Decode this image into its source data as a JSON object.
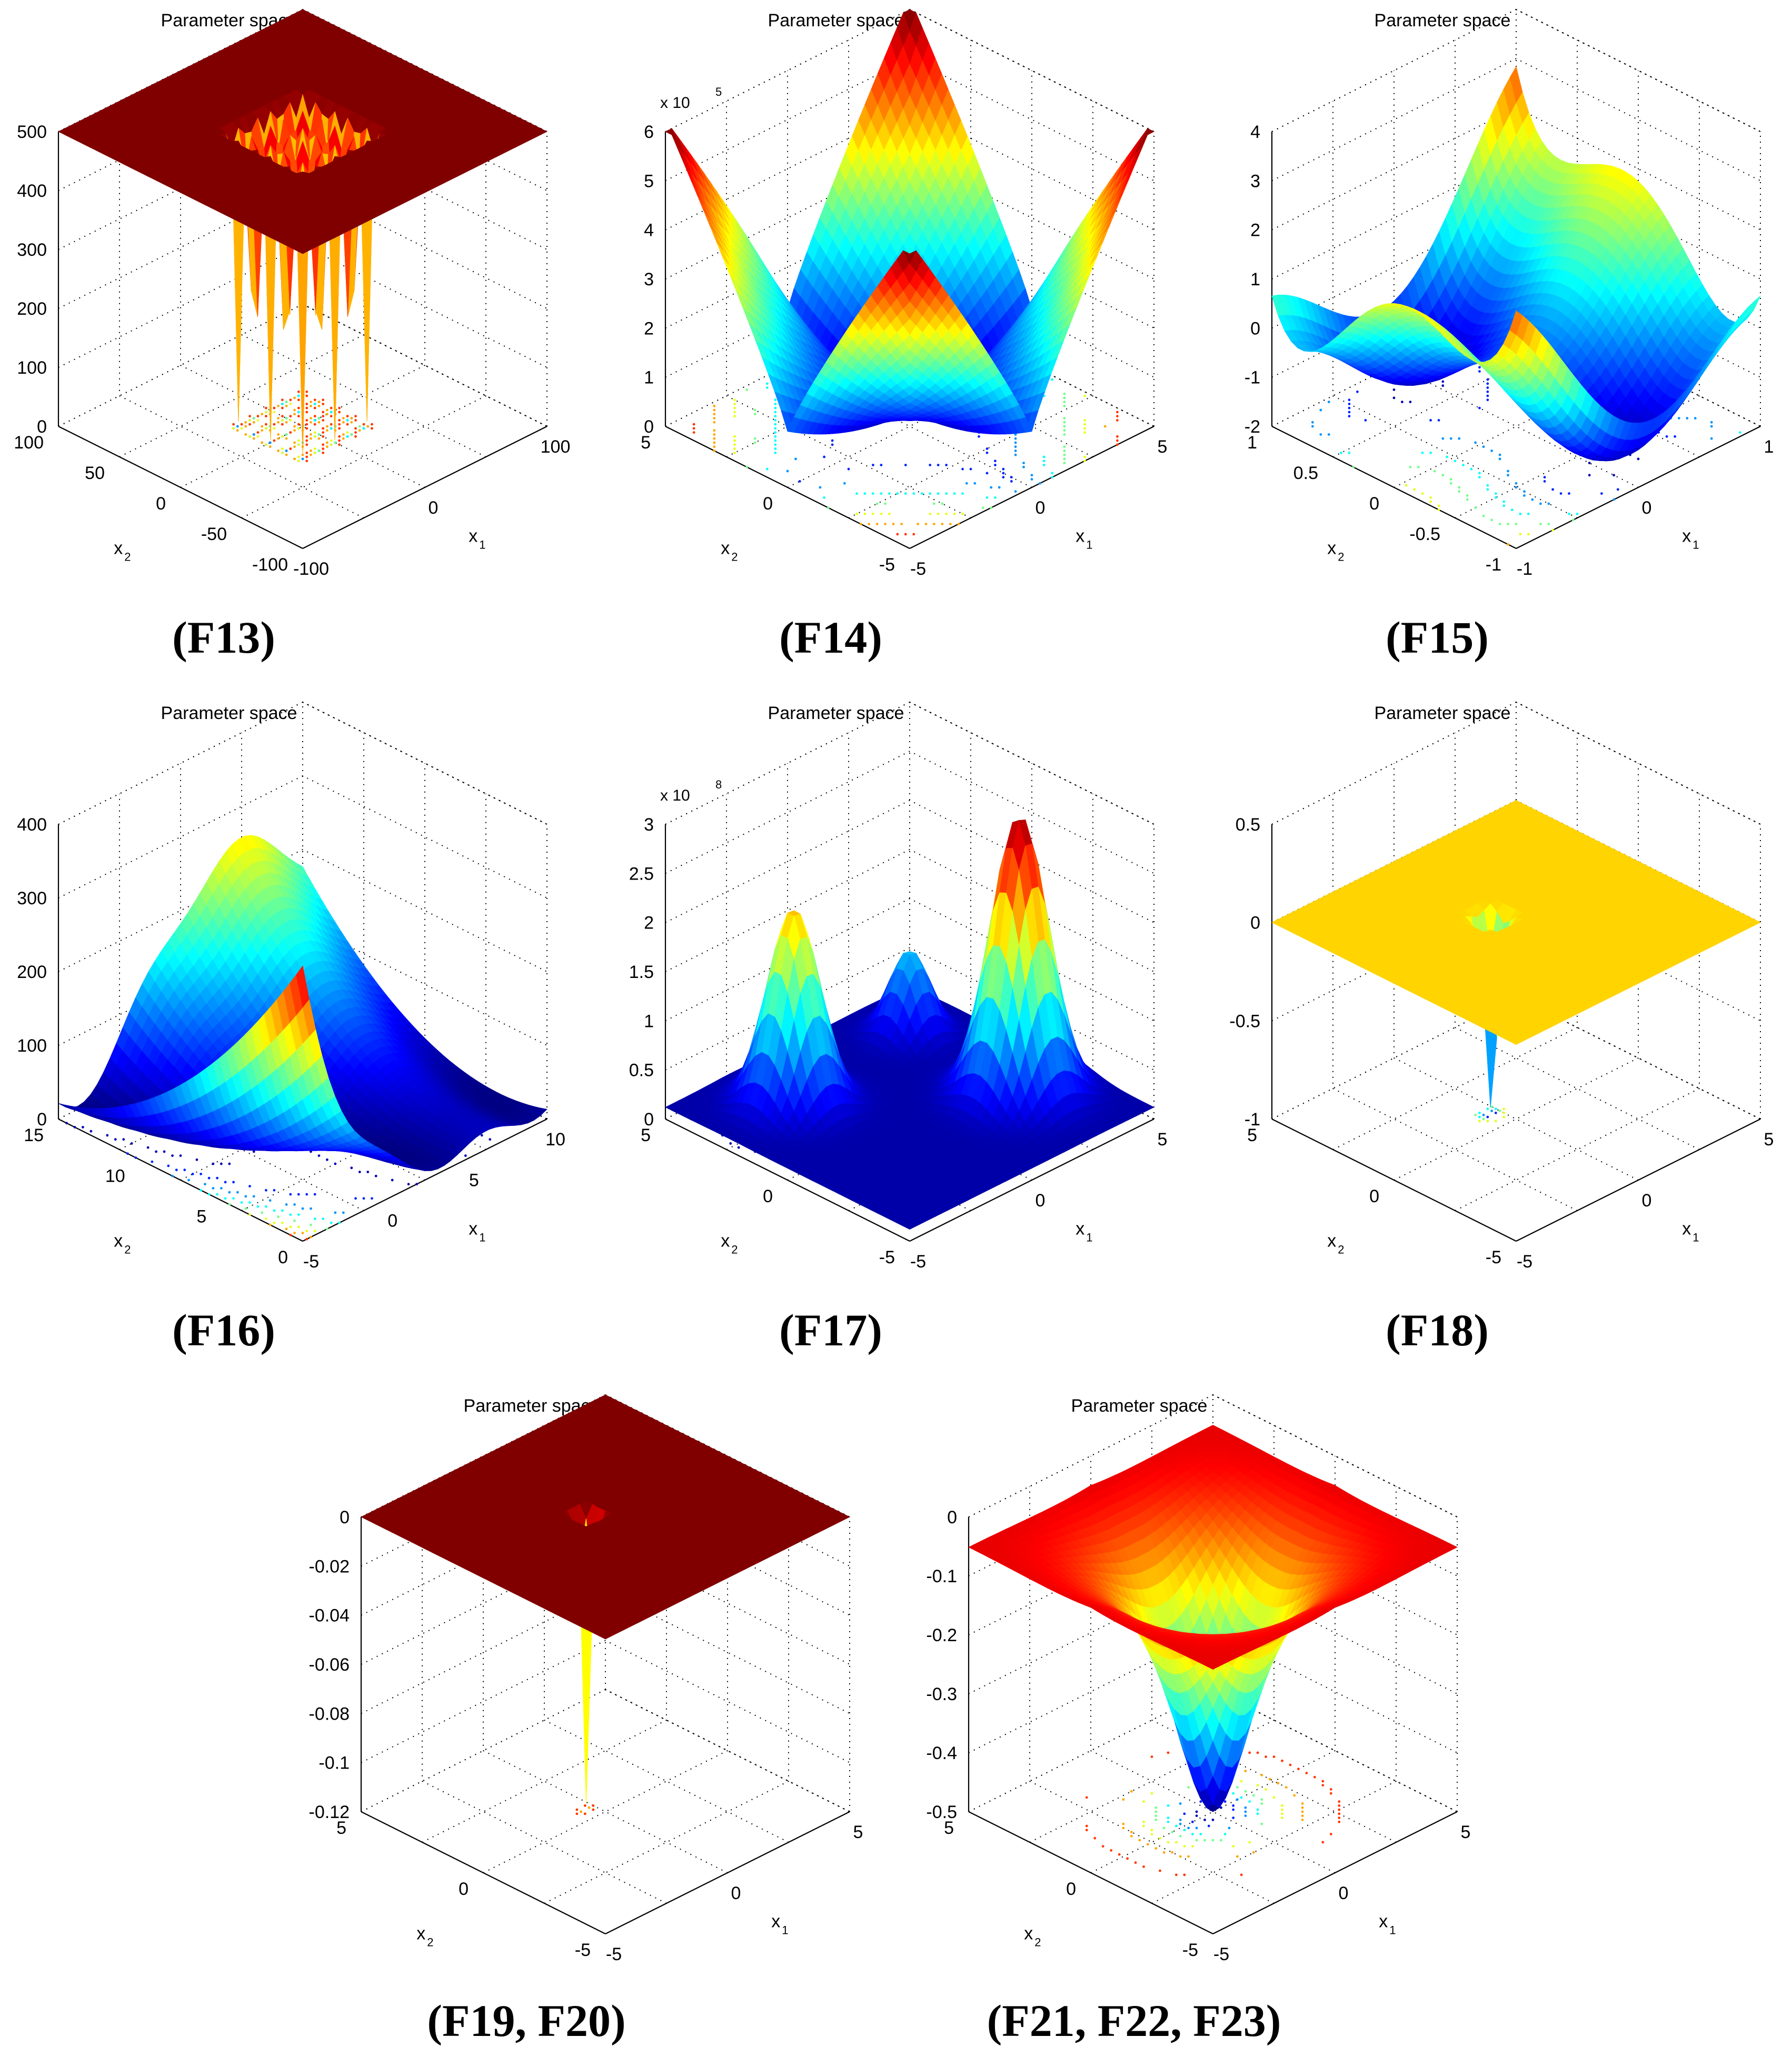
{
  "figure": {
    "panel_title_text": "Parameter space"
  },
  "chart_data": [
    {
      "type": "surface3d",
      "title": "Parameter space",
      "caption": "(F13)",
      "zlim": [
        0,
        500
      ],
      "z_ticks": [
        "0",
        "100",
        "200",
        "300",
        "400",
        "500"
      ],
      "x1_ticks": [
        "-100",
        "0",
        "100"
      ],
      "x2_ticks": [
        "-100",
        "-50",
        "0",
        "50",
        "100"
      ],
      "xlabel": "x",
      "xlabel_sub": "1",
      "ylabel": "x",
      "ylabel_sub": "2",
      "exponent_label": "",
      "exponent_power": "",
      "surface_shape": "shekel_foxholes_plateau",
      "has_contours": true
    },
    {
      "type": "surface3d",
      "title": "Parameter space",
      "caption": "(F14)",
      "zlim": [
        0,
        6
      ],
      "z_ticks": [
        "0",
        "1",
        "2",
        "3",
        "4",
        "5",
        "6"
      ],
      "x1_ticks": [
        "-5",
        "0",
        "5"
      ],
      "x2_ticks": [
        "-5",
        "0",
        "5"
      ],
      "xlabel": "x",
      "xlabel_sub": "1",
      "ylabel": "x",
      "ylabel_sub": "2",
      "exponent_label": "x 10",
      "exponent_power": "5",
      "surface_shape": "kowalik_bowl",
      "has_contours": true
    },
    {
      "type": "surface3d",
      "title": "Parameter space",
      "caption": "(F15)",
      "zlim": [
        -2,
        4
      ],
      "z_ticks": [
        "-2",
        "-1",
        "0",
        "1",
        "2",
        "3",
        "4"
      ],
      "x1_ticks": [
        "-1",
        "0",
        "1"
      ],
      "x2_ticks": [
        "-1",
        "-0.5",
        "0",
        "0.5",
        "1"
      ],
      "xlabel": "x",
      "xlabel_sub": "1",
      "ylabel": "x",
      "ylabel_sub": "2",
      "exponent_label": "",
      "exponent_power": "",
      "surface_shape": "six_hump_camel",
      "has_contours": true
    },
    {
      "type": "surface3d",
      "title": "Parameter space",
      "caption": "(F16)",
      "zlim": [
        0,
        400
      ],
      "z_ticks": [
        "0",
        "100",
        "200",
        "300",
        "400"
      ],
      "x1_ticks": [
        "-5",
        "0",
        "5",
        "10"
      ],
      "x2_ticks": [
        "0",
        "5",
        "10",
        "15"
      ],
      "xlabel": "x",
      "xlabel_sub": "1",
      "ylabel": "x",
      "ylabel_sub": "2",
      "exponent_label": "",
      "exponent_power": "",
      "surface_shape": "branin",
      "has_contours": true
    },
    {
      "type": "surface3d",
      "title": "Parameter space",
      "caption": "(F17)",
      "zlim": [
        0,
        3
      ],
      "z_ticks": [
        "0",
        "0.5",
        "1",
        "1.5",
        "2",
        "2.5",
        "3"
      ],
      "x1_ticks": [
        "-5",
        "0",
        "5"
      ],
      "x2_ticks": [
        "-5",
        "0",
        "5"
      ],
      "xlabel": "x",
      "xlabel_sub": "1",
      "ylabel": "x",
      "ylabel_sub": "2",
      "exponent_label": "x 10",
      "exponent_power": "8",
      "surface_shape": "goldstein_price",
      "has_contours": true
    },
    {
      "type": "surface3d",
      "title": "Parameter space",
      "caption": "(F18)",
      "zlim": [
        -1,
        0.5
      ],
      "z_ticks": [
        "-1",
        "-0.5",
        "0",
        "0.5"
      ],
      "x1_ticks": [
        "-5",
        "0",
        "5"
      ],
      "x2_ticks": [
        "-5",
        "0",
        "5"
      ],
      "xlabel": "x",
      "xlabel_sub": "1",
      "ylabel": "x",
      "ylabel_sub": "2",
      "exponent_label": "",
      "exponent_power": "",
      "surface_shape": "hartman_flat_hole",
      "has_contours": true
    },
    {
      "type": "surface3d",
      "title": "Parameter space",
      "caption": "(F19, F20)",
      "zlim": [
        -0.12,
        0
      ],
      "z_ticks": [
        "-0.12",
        "-0.1",
        "-0.08",
        "-0.06",
        "-0.04",
        "-0.02",
        "0"
      ],
      "x1_ticks": [
        "-5",
        "0",
        "5"
      ],
      "x2_ticks": [
        "-5",
        "0",
        "5"
      ],
      "xlabel": "x",
      "xlabel_sub": "1",
      "ylabel": "x",
      "ylabel_sub": "2",
      "exponent_label": "",
      "exponent_power": "",
      "surface_shape": "narrow_spike",
      "has_contours": true
    },
    {
      "type": "surface3d",
      "title": "Parameter space",
      "caption": "(F21, F22, F23)",
      "zlim": [
        -0.5,
        0
      ],
      "z_ticks": [
        "-0.5",
        "-0.4",
        "-0.3",
        "-0.2",
        "-0.1",
        "0"
      ],
      "x1_ticks": [
        "-5",
        "0",
        "5"
      ],
      "x2_ticks": [
        "-5",
        "0",
        "5"
      ],
      "xlabel": "x",
      "xlabel_sub": "1",
      "ylabel": "x",
      "ylabel_sub": "2",
      "exponent_label": "",
      "exponent_power": "",
      "surface_shape": "shekel_funnel",
      "has_contours": true
    }
  ]
}
